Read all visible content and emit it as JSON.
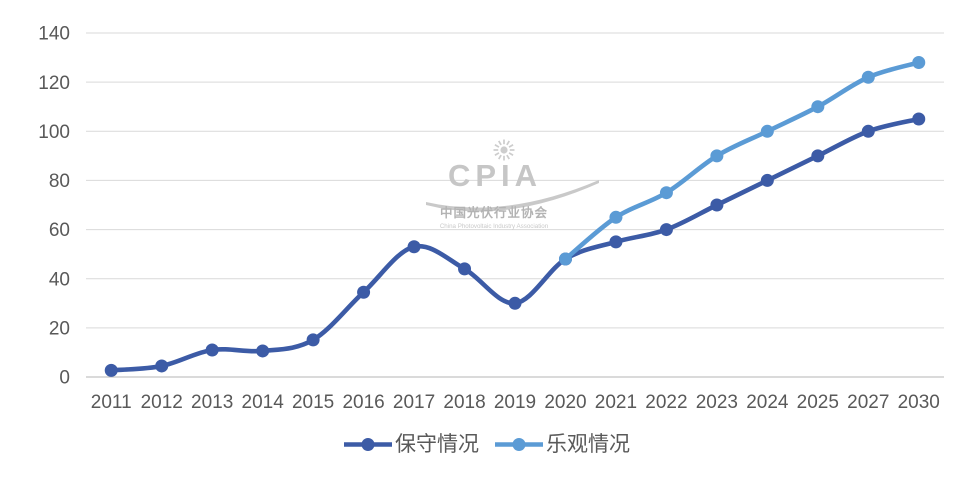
{
  "chart_data": {
    "type": "line",
    "title": "",
    "xlabel": "",
    "ylabel": "",
    "categories": [
      "2011",
      "2012",
      "2013",
      "2014",
      "2015",
      "2016",
      "2017",
      "2018",
      "2019",
      "2020",
      "2021",
      "2022",
      "2023",
      "2024",
      "2025",
      "2027",
      "2030"
    ],
    "series": [
      {
        "id": "conservative",
        "name": "保守情况",
        "color": "#3C5BA6",
        "values": [
          2.7,
          4.5,
          11,
          10.6,
          15.1,
          34.5,
          53,
          44,
          30,
          48,
          55,
          60,
          70,
          80,
          90,
          100,
          105
        ]
      },
      {
        "id": "optimistic",
        "name": "乐观情况",
        "color": "#5B9BD5",
        "values": [
          null,
          null,
          null,
          null,
          null,
          null,
          null,
          null,
          null,
          48,
          65,
          75,
          90,
          100,
          110,
          122,
          128
        ]
      }
    ],
    "ylim": [
      0,
      140
    ],
    "y_ticks": [
      0,
      20,
      40,
      60,
      80,
      100,
      120,
      140
    ],
    "grid": true,
    "smooth": true,
    "legend_position": "bottom"
  },
  "watermark": {
    "logo_text": "CPIA",
    "org_cn": "中国光伏行业协会",
    "org_en": "China Photovoltaic Industry Association"
  },
  "colors": {
    "grid": "#D9D9D9",
    "zero_line": "#C3C3C3",
    "axis_text": "#595959",
    "legend_text": "#595959",
    "watermark_logo": "#C6C6C6",
    "watermark_cn": "#B3B3B3",
    "watermark_en": "#C9C9C9",
    "background": "#FFFFFF"
  }
}
